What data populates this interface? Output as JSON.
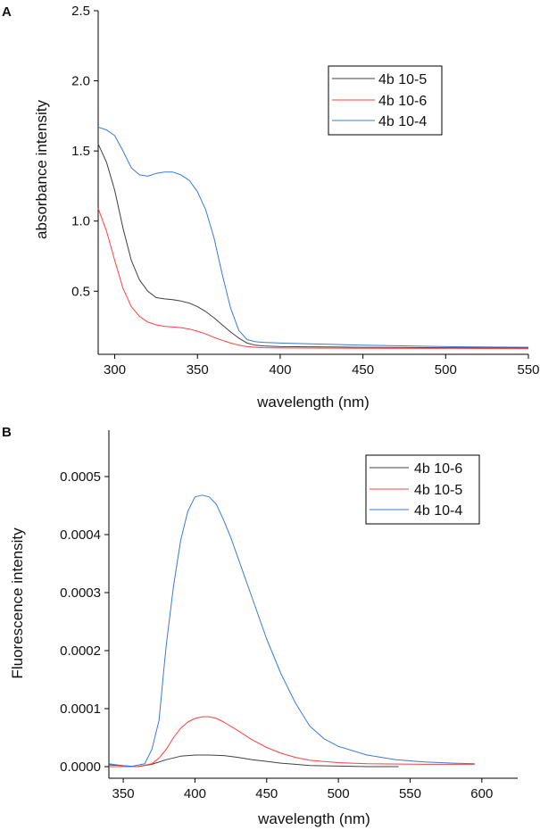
{
  "chart_data": [
    {
      "panel": "A",
      "type": "line",
      "xlabel": "wavelength (nm)",
      "ylabel": "absorbance intensity",
      "xlim": [
        290,
        550
      ],
      "ylim": [
        0.05,
        2.5
      ],
      "xticks": [
        300,
        350,
        400,
        450,
        500,
        550
      ],
      "yticks": [
        0.5,
        1.0,
        1.5,
        2.0,
        2.5
      ],
      "ytick_labels": [
        "0.5",
        "1.0",
        "1.5",
        "2.0",
        "2.5"
      ],
      "legend_position": "top-right",
      "series": [
        {
          "name": "4b 10-5",
          "color": "#404040",
          "x": [
            290,
            295,
            300,
            305,
            310,
            315,
            320,
            325,
            330,
            335,
            340,
            345,
            350,
            355,
            360,
            365,
            370,
            375,
            380,
            385,
            390,
            400,
            450,
            500,
            550
          ],
          "y": [
            1.55,
            1.42,
            1.22,
            0.95,
            0.72,
            0.58,
            0.5,
            0.455,
            0.445,
            0.44,
            0.43,
            0.415,
            0.39,
            0.355,
            0.31,
            0.26,
            0.21,
            0.165,
            0.13,
            0.115,
            0.11,
            0.105,
            0.1,
            0.097,
            0.095
          ]
        },
        {
          "name": "4b 10-6",
          "color": "#ff4040",
          "x": [
            290,
            295,
            300,
            305,
            310,
            315,
            320,
            325,
            330,
            335,
            340,
            345,
            350,
            355,
            360,
            365,
            370,
            375,
            380,
            385,
            390,
            400,
            450,
            500,
            550
          ],
          "y": [
            1.09,
            0.93,
            0.72,
            0.52,
            0.39,
            0.32,
            0.28,
            0.26,
            0.25,
            0.245,
            0.24,
            0.23,
            0.215,
            0.195,
            0.17,
            0.15,
            0.13,
            0.115,
            0.105,
            0.1,
            0.097,
            0.095,
            0.093,
            0.092,
            0.09
          ]
        },
        {
          "name": "4b 10-4",
          "color": "#3a7bd5",
          "x": [
            290,
            295,
            300,
            305,
            310,
            315,
            320,
            325,
            330,
            335,
            340,
            345,
            350,
            355,
            360,
            365,
            370,
            375,
            380,
            385,
            390,
            400,
            450,
            500,
            550
          ],
          "y": [
            1.67,
            1.65,
            1.61,
            1.5,
            1.38,
            1.33,
            1.32,
            1.34,
            1.35,
            1.35,
            1.33,
            1.29,
            1.21,
            1.08,
            0.88,
            0.62,
            0.38,
            0.22,
            0.155,
            0.14,
            0.135,
            0.13,
            0.115,
            0.105,
            0.1
          ]
        }
      ]
    },
    {
      "panel": "B",
      "type": "line",
      "xlabel": "wavelength (nm)",
      "ylabel": "Fluorescence intensity",
      "xlim": [
        340,
        625
      ],
      "ylim": [
        -2e-05,
        0.00058
      ],
      "xticks": [
        350,
        400,
        450,
        500,
        550,
        600
      ],
      "yticks": [
        0.0,
        0.0001,
        0.0002,
        0.0003,
        0.0004,
        0.0005
      ],
      "ytick_labels": [
        "0.0000",
        "0.0001",
        "0.0002",
        "0.0003",
        "0.0004",
        "0.0005"
      ],
      "legend_position": "top-right",
      "series": [
        {
          "name": "4b 10-6",
          "color": "#404040",
          "x": [
            340,
            360,
            370,
            380,
            390,
            400,
            410,
            420,
            430,
            440,
            450,
            460,
            470,
            480,
            500,
            520,
            542
          ],
          "y": [
            3e-06,
            0.0,
            4e-06,
            1.2e-05,
            1.8e-05,
            2e-05,
            2e-05,
            1.9e-05,
            1.6e-05,
            1.2e-05,
            9e-06,
            6e-06,
            4e-06,
            2e-06,
            1e-06,
            0.0,
            0.0
          ]
        },
        {
          "name": "4b 10-5",
          "color": "#ff4040",
          "x": [
            340,
            360,
            370,
            375,
            380,
            385,
            390,
            395,
            400,
            405,
            410,
            415,
            420,
            430,
            440,
            450,
            460,
            470,
            480,
            500,
            520,
            560,
            595
          ],
          "y": [
            0.0,
            0.0,
            5e-06,
            1.5e-05,
            3e-05,
            5e-05,
            6.6e-05,
            7.7e-05,
            8.3e-05,
            8.6e-05,
            8.6e-05,
            8.3e-05,
            7.7e-05,
            6.2e-05,
            4.6e-05,
            3.3e-05,
            2.3e-05,
            1.6e-05,
            1.1e-05,
            7e-06,
            5e-06,
            4e-06,
            4e-06
          ]
        },
        {
          "name": "4b 10-4",
          "color": "#3a7bd5",
          "x": [
            340,
            355,
            365,
            370,
            375,
            378,
            380,
            385,
            390,
            395,
            400,
            405,
            410,
            415,
            420,
            425,
            430,
            440,
            450,
            460,
            470,
            480,
            490,
            500,
            520,
            540,
            560,
            580,
            595
          ],
          "y": [
            5e-06,
            0.0,
            5e-06,
            3e-05,
            8e-05,
            0.00016,
            0.00021,
            0.00031,
            0.00039,
            0.00044,
            0.000465,
            0.000468,
            0.000465,
            0.000452,
            0.000425,
            0.000395,
            0.00036,
            0.00029,
            0.00022,
            0.00016,
            0.00011,
            7e-05,
            4.8e-05,
            3.5e-05,
            2e-05,
            1.2e-05,
            8e-06,
            6e-06,
            5e-06
          ]
        }
      ]
    }
  ]
}
